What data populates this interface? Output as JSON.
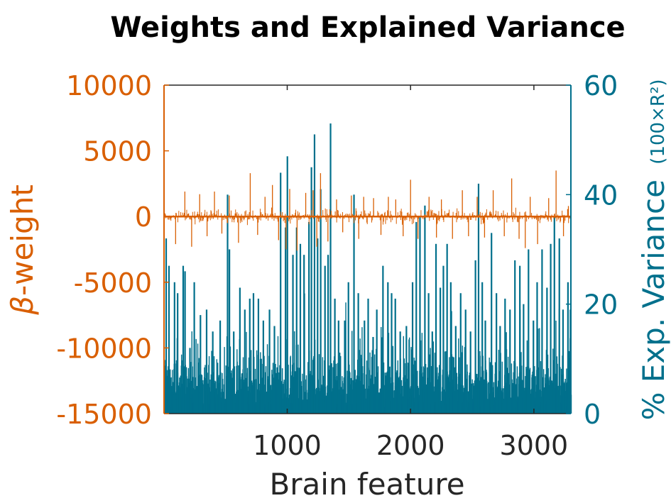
{
  "chart_data": {
    "type": "bar",
    "title": "Weights and Explained Variance",
    "xlabel": "Brain feature",
    "xlim": [
      1,
      3300
    ],
    "xticks": [
      1000,
      2000,
      3000
    ],
    "grid": false,
    "legend": "none",
    "left_axis": {
      "label_symbol": "β",
      "label_text": "-weight",
      "ylim": [
        -15000,
        10000
      ],
      "yticks": [
        "-15000",
        "-10000",
        "-5000",
        "0",
        "5000",
        "10000"
      ],
      "color": "#D95F02"
    },
    "right_axis": {
      "label_main": "% Exp. Variance",
      "label_detail": "(100×R²)",
      "ylim": [
        0,
        60
      ],
      "yticks": [
        "0",
        "20",
        "40",
        "60"
      ],
      "color": "#00708C"
    },
    "series": [
      {
        "axis": "left",
        "kind": "stem",
        "n_features": 3300,
        "peaks": [
          [
            95,
            -2100
          ],
          [
            170,
            1900
          ],
          [
            225,
            -2300
          ],
          [
            290,
            1700
          ],
          [
            350,
            -1500
          ],
          [
            410,
            1900
          ],
          [
            470,
            -1300
          ],
          [
            530,
            1600
          ],
          [
            605,
            -2000
          ],
          [
            700,
            3300
          ],
          [
            760,
            -1400
          ],
          [
            820,
            1500
          ],
          [
            880,
            2400
          ],
          [
            930,
            -1800
          ],
          [
            990,
            -2500
          ],
          [
            1020,
            2100
          ],
          [
            1080,
            -2600
          ],
          [
            1150,
            1800
          ],
          [
            1210,
            2000
          ],
          [
            1240,
            -2300
          ],
          [
            1270,
            3300
          ],
          [
            1330,
            -1900
          ],
          [
            1400,
            1300
          ],
          [
            1450,
            -1200
          ],
          [
            1520,
            1600
          ],
          [
            1580,
            -1700
          ],
          [
            1620,
            1500
          ],
          [
            1700,
            1400
          ],
          [
            1760,
            -1400
          ],
          [
            1820,
            1500
          ],
          [
            1880,
            1300
          ],
          [
            1940,
            -1500
          ],
          [
            2000,
            2800
          ],
          [
            2060,
            -1700
          ],
          [
            2150,
            1500
          ],
          [
            2210,
            -1600
          ],
          [
            2250,
            1300
          ],
          [
            2340,
            -1700
          ],
          [
            2420,
            2000
          ],
          [
            2470,
            -1500
          ],
          [
            2540,
            1500
          ],
          [
            2600,
            -1600
          ],
          [
            2670,
            2000
          ],
          [
            2760,
            -1500
          ],
          [
            2820,
            2900
          ],
          [
            2880,
            -1700
          ],
          [
            2930,
            -2400
          ],
          [
            2970,
            1500
          ],
          [
            3030,
            -2100
          ],
          [
            3120,
            1400
          ],
          [
            3180,
            3500
          ],
          [
            3240,
            -1500
          ],
          [
            3280,
            800
          ]
        ],
        "noise_amplitude": 700
      },
      {
        "axis": "right",
        "kind": "bar",
        "n_features": 3300,
        "peaks": [
          [
            12,
            32
          ],
          [
            35,
            27
          ],
          [
            80,
            24
          ],
          [
            105,
            22
          ],
          [
            150,
            27
          ],
          [
            165,
            26
          ],
          [
            205,
            12
          ],
          [
            240,
            24
          ],
          [
            290,
            18
          ],
          [
            340,
            19
          ],
          [
            390,
            15
          ],
          [
            450,
            17
          ],
          [
            510,
            40
          ],
          [
            525,
            30
          ],
          [
            560,
            15
          ],
          [
            610,
            23
          ],
          [
            650,
            19
          ],
          [
            690,
            21
          ],
          [
            720,
            22
          ],
          [
            760,
            21
          ],
          [
            800,
            17
          ],
          [
            850,
            19
          ],
          [
            890,
            16
          ],
          [
            940,
            44
          ],
          [
            980,
            34
          ],
          [
            995,
            47
          ],
          [
            1040,
            29
          ],
          [
            1070,
            34
          ],
          [
            1100,
            31
          ],
          [
            1130,
            29
          ],
          [
            1170,
            35
          ],
          [
            1190,
            45
          ],
          [
            1215,
            51
          ],
          [
            1240,
            32
          ],
          [
            1265,
            41
          ],
          [
            1300,
            27
          ],
          [
            1325,
            29
          ],
          [
            1345,
            53
          ],
          [
            1380,
            21
          ],
          [
            1410,
            17
          ],
          [
            1460,
            17
          ],
          [
            1490,
            24
          ],
          [
            1535,
            40
          ],
          [
            1570,
            22
          ],
          [
            1620,
            17
          ],
          [
            1650,
            21
          ],
          [
            1690,
            14
          ],
          [
            1720,
            19
          ],
          [
            1770,
            27
          ],
          [
            1810,
            24
          ],
          [
            1840,
            22
          ],
          [
            1870,
            21
          ],
          [
            1910,
            15
          ],
          [
            1960,
            16
          ],
          [
            2010,
            24
          ],
          [
            2040,
            35
          ],
          [
            2070,
            36
          ],
          [
            2110,
            38
          ],
          [
            2140,
            22
          ],
          [
            2170,
            15
          ],
          [
            2200,
            31
          ],
          [
            2235,
            23
          ],
          [
            2260,
            27
          ],
          [
            2290,
            31
          ],
          [
            2320,
            24
          ],
          [
            2360,
            16
          ],
          [
            2400,
            22
          ],
          [
            2440,
            19
          ],
          [
            2480,
            15
          ],
          [
            2520,
            28
          ],
          [
            2545,
            42
          ],
          [
            2575,
            24
          ],
          [
            2600,
            17
          ],
          [
            2650,
            33
          ],
          [
            2690,
            22
          ],
          [
            2720,
            16
          ],
          [
            2760,
            21
          ],
          [
            2800,
            19
          ],
          [
            2840,
            28
          ],
          [
            2880,
            27
          ],
          [
            2910,
            20
          ],
          [
            2950,
            30
          ],
          [
            2990,
            17
          ],
          [
            3020,
            24
          ],
          [
            3060,
            30
          ],
          [
            3100,
            23
          ],
          [
            3130,
            31
          ],
          [
            3160,
            36
          ],
          [
            3200,
            32
          ],
          [
            3230,
            19
          ],
          [
            3270,
            24
          ],
          [
            3290,
            19
          ]
        ],
        "baseline": 4,
        "baseline_spread": 8
      }
    ]
  }
}
